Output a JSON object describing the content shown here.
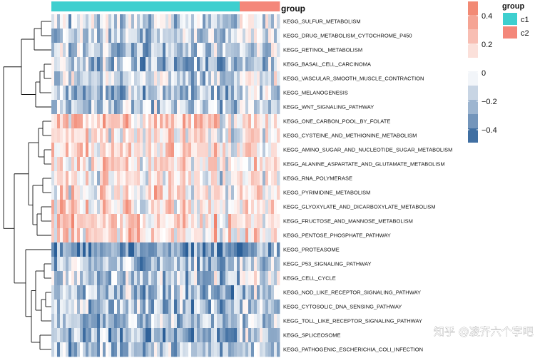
{
  "chart_data": {
    "type": "heatmap",
    "annotation_title": "group",
    "groups": [
      {
        "name": "c1",
        "color": "#3ecfcf"
      },
      {
        "name": "c2",
        "color": "#f4877a"
      }
    ],
    "rows": [
      "KEGG_SULFUR_METABOLISM",
      "KEGG_DRUG_METABOLISM_CYTOCHROME_P450",
      "KEGG_RETINOL_METABOLISM",
      "KEGG_BASAL_CELL_CARCINOMA",
      "KEGG_VASCULAR_SMOOTH_MUSCLE_CONTRACTION",
      "KEGG_MELANOGENESIS",
      "KEGG_WNT_SIGNALING_PATHWAY",
      "KEGG_ONE_CARBON_POOL_BY_FOLATE",
      "KEGG_CYSTEINE_AND_METHIONINE_METABOLISM",
      "KEGG_AMINO_SUGAR_AND_NUCLEOTIDE_SUGAR_METABOLISM",
      "KEGG_ALANINE_ASPARTATE_AND_GLUTAMATE_METABOLISM",
      "KEGG_RNA_POLYMERASE",
      "KEGG_PYRIMIDINE_METABOLISM",
      "KEGG_GLYOXYLATE_AND_DICARBOXYLATE_METABOLISM",
      "KEGG_FRUCTOSE_AND_MANNOSE_METABOLISM",
      "KEGG_PENTOSE_PHOSPHATE_PATHWAY",
      "KEGG_PROTEASOME",
      "KEGG_P53_SIGNALING_PATHWAY",
      "KEGG_CELL_CYCLE",
      "KEGG_NOD_LIKE_RECEPTOR_SIGNALING_PATHWAY",
      "KEGG_CYTOSOLIC_DNA_SENSING_PATHWAY",
      "KEGG_TOLL_LIKE_RECEPTOR_SIGNALING_PATHWAY",
      "KEGG_SPLICEOSOME",
      "KEGG_PATHOGENIC_ESCHERICHIA_COLI_INFECTION"
    ],
    "n_columns": 80,
    "n_c1": 66,
    "row_means": [
      -0.12,
      -0.15,
      -0.18,
      -0.2,
      -0.12,
      -0.2,
      -0.18,
      0.15,
      0.1,
      0.12,
      0.08,
      0.05,
      0.08,
      0.1,
      0.15,
      0.1,
      -0.35,
      -0.2,
      -0.15,
      -0.2,
      -0.2,
      -0.2,
      -0.25,
      -0.2
    ],
    "color_scale": {
      "range": [
        -0.5,
        0.5
      ],
      "low": "#2b5f98",
      "mid": "#ffffff",
      "high": "#f07d66",
      "ticks": [
        {
          "value": 0.4,
          "label": "0.4"
        },
        {
          "value": 0.2,
          "label": "0.2"
        },
        {
          "value": 0,
          "label": "0"
        },
        {
          "value": -0.2,
          "label": "−0.2"
        },
        {
          "value": -0.4,
          "label": "−0.4"
        }
      ]
    },
    "dendrogram": "rows clustered: block of 7 (SULFUR..WNT), block of 9 (ONE_CARBON..PENTOSE), block of 8 (PROTEASOME..PATHOGENIC)"
  },
  "watermark": "知乎 @凌齐六个字吧"
}
